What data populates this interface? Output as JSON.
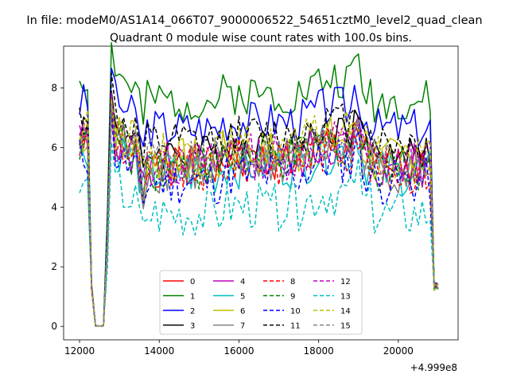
{
  "chart_data": {
    "type": "line",
    "suptitle": "In file: modeM0/AS1A14_066T07_9000006522_54651cztM0_level2_quad_clean",
    "title": "Quadrant 0 module wise count rates with 100.0s bins.",
    "xlabel": "",
    "ylabel": "",
    "x_offset_label": "+4.999e8",
    "xlim": [
      11600,
      21500
    ],
    "ylim": [
      -0.45,
      9.4
    ],
    "xticks": [
      12000,
      14000,
      16000,
      18000,
      20000
    ],
    "yticks": [
      0,
      2,
      4,
      6,
      8
    ],
    "legend_position": "lower-center",
    "legend_columns": 4,
    "series": [
      {
        "name": "0",
        "color": "#ff0000",
        "dash": "solid",
        "base": 5.6,
        "amp": 0.35,
        "seed": 1
      },
      {
        "name": "1",
        "color": "#008000",
        "dash": "solid",
        "base": 7.8,
        "amp": 0.35,
        "seed": 2
      },
      {
        "name": "2",
        "color": "#0000ff",
        "dash": "solid",
        "base": 6.9,
        "amp": 0.35,
        "seed": 3
      },
      {
        "name": "3",
        "color": "#000000",
        "dash": "solid",
        "base": 6.1,
        "amp": 0.3,
        "seed": 4
      },
      {
        "name": "4",
        "color": "#bf00bf",
        "dash": "solid",
        "base": 5.6,
        "amp": 0.4,
        "seed": 5
      },
      {
        "name": "5",
        "color": "#00bfbf",
        "dash": "solid",
        "base": 5.4,
        "amp": 0.4,
        "seed": 6
      },
      {
        "name": "6",
        "color": "#bfbf00",
        "dash": "solid",
        "base": 5.8,
        "amp": 0.4,
        "seed": 7
      },
      {
        "name": "7",
        "color": "#808080",
        "dash": "solid",
        "base": 5.5,
        "amp": 0.4,
        "seed": 8
      },
      {
        "name": "8",
        "color": "#ff0000",
        "dash": "dashed",
        "base": 5.5,
        "amp": 0.4,
        "seed": 9
      },
      {
        "name": "9",
        "color": "#008000",
        "dash": "dashed",
        "base": 5.6,
        "amp": 0.4,
        "seed": 10
      },
      {
        "name": "10",
        "color": "#0000ff",
        "dash": "dashed",
        "base": 5.1,
        "amp": 0.4,
        "seed": 11
      },
      {
        "name": "11",
        "color": "#000000",
        "dash": "dashed",
        "base": 6.4,
        "amp": 0.35,
        "seed": 12
      },
      {
        "name": "12",
        "color": "#bf00bf",
        "dash": "dashed",
        "base": 5.7,
        "amp": 0.4,
        "seed": 13
      },
      {
        "name": "13",
        "color": "#00bfbf",
        "dash": "dashed",
        "base": 4.0,
        "amp": 0.4,
        "seed": 14
      },
      {
        "name": "14",
        "color": "#bfbf00",
        "dash": "dashed",
        "base": 6.0,
        "amp": 0.4,
        "seed": 15
      },
      {
        "name": "15",
        "color": "#808080",
        "dash": "dashed",
        "base": 5.8,
        "amp": 0.4,
        "seed": 16
      }
    ]
  }
}
